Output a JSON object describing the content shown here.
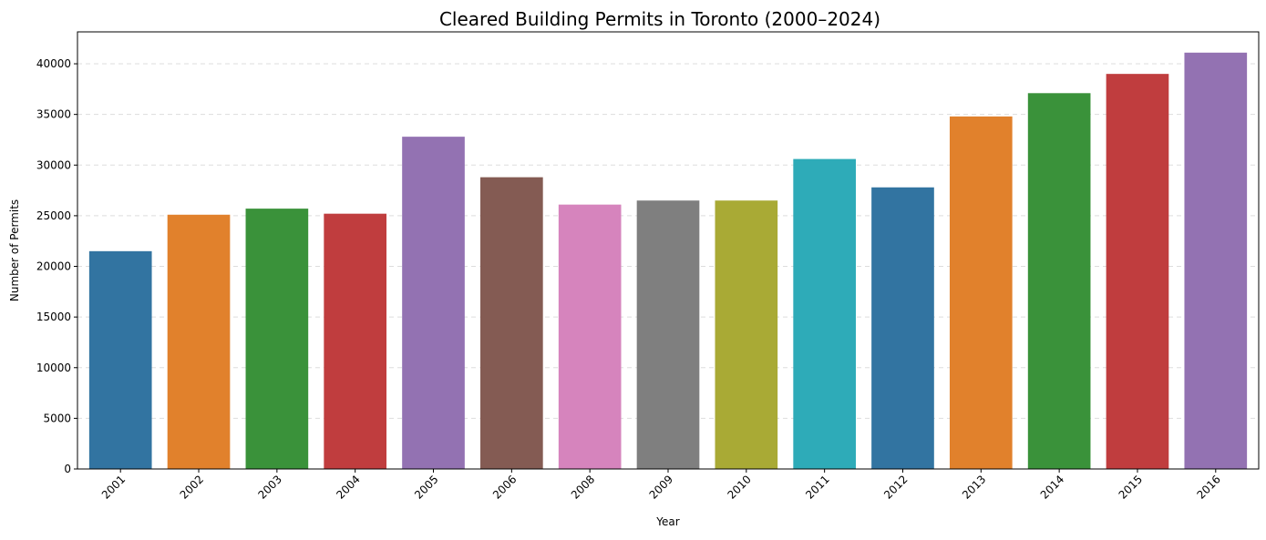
{
  "chart_data": {
    "type": "bar",
    "title": "Cleared Building Permits in Toronto (2000–2024)",
    "xlabel": "Year",
    "ylabel": "Number of Permits",
    "categories": [
      "2001",
      "2002",
      "2003",
      "2004",
      "2005",
      "2006",
      "2008",
      "2009",
      "2010",
      "2011",
      "2012",
      "2013",
      "2014",
      "2015",
      "2016"
    ],
    "values": [
      21500,
      25100,
      25700,
      25200,
      32800,
      28800,
      26100,
      26500,
      26500,
      30600,
      27800,
      34800,
      37100,
      39000,
      41100
    ],
    "colors": [
      "#3274a1",
      "#e1812c",
      "#3a923a",
      "#c03d3e",
      "#9372b2",
      "#845b53",
      "#d684bd",
      "#7f7f7f",
      "#a9aa35",
      "#2eabb8",
      "#3274a1",
      "#e1812c",
      "#3a923a",
      "#c03d3e",
      "#9372b2"
    ],
    "ylim": [
      0,
      43150
    ],
    "yticks": [
      0,
      5000,
      10000,
      15000,
      20000,
      25000,
      30000,
      35000,
      40000
    ],
    "grid": "y-dashed",
    "grid_color": "#dddddd"
  }
}
